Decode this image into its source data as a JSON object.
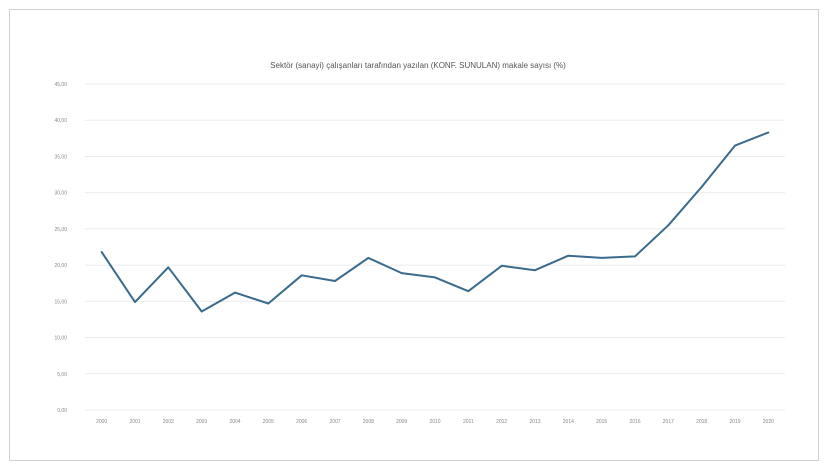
{
  "chart_data": {
    "type": "line",
    "title": "Sektör (sanayi) çalışanları tarafından yazılan (KONF. SUNULAN) makale sayısı (%)",
    "xlabel": "",
    "ylabel": "",
    "ylim": [
      0,
      45
    ],
    "yticks": [
      "0,00",
      "5,00",
      "10,00",
      "15,00",
      "20,00",
      "25,00",
      "30,00",
      "35,00",
      "40,00",
      "45,00"
    ],
    "categories": [
      "2000",
      "2001",
      "2002",
      "2003",
      "2004",
      "2005",
      "2006",
      "2007",
      "2008",
      "2009",
      "2010",
      "2011",
      "2012",
      "2013",
      "2014",
      "2015",
      "2016",
      "2017",
      "2018",
      "2019",
      "2020"
    ],
    "series": [
      {
        "values": [
          21.8,
          14.9,
          19.7,
          13.6,
          16.2,
          14.7,
          18.6,
          17.8,
          21.0,
          18.9,
          18.3,
          16.4,
          19.9,
          19.3,
          21.3,
          21.0,
          21.2,
          25.5,
          30.8,
          36.5,
          38.3
        ],
        "color": "#3a6a8c"
      }
    ],
    "grid": true,
    "legend": "none"
  }
}
